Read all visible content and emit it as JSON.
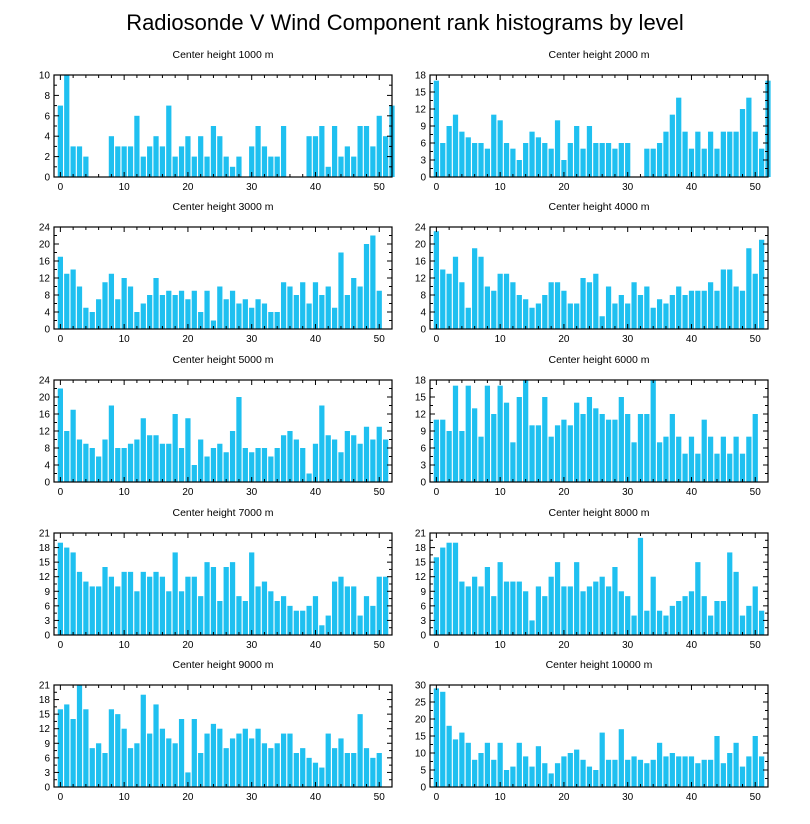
{
  "title": "Radiosonde V Wind Component rank histograms by level",
  "colors": {
    "bar": "#1fc0f0",
    "axis": "#000000"
  },
  "chart_data": [
    {
      "type": "bar",
      "title": "Center height 1000 m",
      "ylim": [
        0,
        10
      ],
      "yticks": [
        0,
        2,
        4,
        6,
        8,
        10
      ],
      "xlim": [
        -1,
        52
      ],
      "xticks": [
        0,
        10,
        20,
        30,
        40,
        50
      ],
      "values": [
        7,
        10,
        3,
        3,
        2,
        0,
        0,
        0,
        4,
        3,
        3,
        3,
        6,
        2,
        3,
        4,
        3,
        7,
        2,
        3,
        4,
        2,
        4,
        2,
        5,
        4,
        2,
        1,
        2,
        0,
        3,
        5,
        3,
        2,
        2,
        5,
        0,
        0,
        0,
        4,
        4,
        5,
        1,
        5,
        2,
        3,
        2,
        5,
        5,
        3,
        6,
        4,
        7
      ]
    },
    {
      "type": "bar",
      "title": "Center height 2000 m",
      "ylim": [
        0,
        18
      ],
      "yticks": [
        0,
        3,
        6,
        9,
        12,
        15,
        18
      ],
      "xlim": [
        -1,
        52
      ],
      "xticks": [
        0,
        10,
        20,
        30,
        40,
        50
      ],
      "values": [
        17,
        6,
        9,
        11,
        8,
        7,
        6,
        6,
        5,
        11,
        10,
        6,
        5,
        3,
        6,
        8,
        7,
        6,
        5,
        10,
        3,
        6,
        9,
        5,
        9,
        6,
        6,
        6,
        5,
        6,
        6,
        0,
        0,
        5,
        5,
        6,
        8,
        11,
        14,
        8,
        5,
        8,
        5,
        8,
        5,
        8,
        8,
        8,
        12,
        14,
        8,
        5,
        17
      ]
    },
    {
      "type": "bar",
      "title": "Center height 3000 m",
      "ylim": [
        0,
        24
      ],
      "yticks": [
        0,
        4,
        8,
        12,
        16,
        20,
        24
      ],
      "xlim": [
        -1,
        52
      ],
      "xticks": [
        0,
        10,
        20,
        30,
        40,
        50
      ],
      "values": [
        17,
        13,
        14,
        10,
        5,
        4,
        7,
        11,
        13,
        7,
        12,
        10,
        4,
        6,
        8,
        12,
        8,
        9,
        8,
        9,
        7,
        9,
        4,
        9,
        2,
        10,
        7,
        9,
        6,
        7,
        5,
        7,
        6,
        4,
        4,
        11,
        10,
        8,
        11,
        6,
        11,
        8,
        10,
        5,
        18,
        8,
        12,
        10,
        20,
        22,
        9
      ]
    },
    {
      "type": "bar",
      "title": "Center height 4000 m",
      "ylim": [
        0,
        24
      ],
      "yticks": [
        0,
        4,
        8,
        12,
        16,
        20,
        24
      ],
      "xlim": [
        -1,
        52
      ],
      "xticks": [
        0,
        10,
        20,
        30,
        40,
        50
      ],
      "values": [
        23,
        14,
        13,
        17,
        11,
        5,
        19,
        17,
        10,
        9,
        13,
        13,
        11,
        8,
        7,
        5,
        6,
        8,
        11,
        11,
        9,
        6,
        6,
        12,
        11,
        13,
        3,
        10,
        6,
        8,
        6,
        11,
        8,
        10,
        5,
        7,
        6,
        8,
        10,
        8,
        9,
        9,
        9,
        11,
        9,
        14,
        14,
        10,
        9,
        19,
        13,
        21
      ]
    },
    {
      "type": "bar",
      "title": "Center height 5000 m",
      "ylim": [
        0,
        24
      ],
      "yticks": [
        0,
        4,
        8,
        12,
        16,
        20,
        24
      ],
      "xlim": [
        -1,
        52
      ],
      "xticks": [
        0,
        10,
        20,
        30,
        40,
        50
      ],
      "values": [
        22,
        12,
        17,
        10,
        9,
        8,
        6,
        10,
        18,
        8,
        8,
        9,
        10,
        15,
        11,
        11,
        9,
        9,
        16,
        8,
        15,
        4,
        10,
        6,
        8,
        9,
        7,
        12,
        20,
        8,
        7,
        8,
        8,
        6,
        8,
        11,
        12,
        10,
        8,
        2,
        9,
        18,
        11,
        10,
        7,
        12,
        11,
        9,
        13,
        10,
        13,
        10
      ]
    },
    {
      "type": "bar",
      "title": "Center height 6000 m",
      "ylim": [
        0,
        18
      ],
      "yticks": [
        0,
        3,
        6,
        9,
        12,
        15,
        18
      ],
      "xlim": [
        -1,
        52
      ],
      "xticks": [
        0,
        10,
        20,
        30,
        40,
        50
      ],
      "values": [
        11,
        11,
        9,
        17,
        9,
        17,
        13,
        8,
        17,
        12,
        17,
        14,
        7,
        15,
        18,
        10,
        10,
        15,
        8,
        10,
        11,
        10,
        14,
        12,
        15,
        13,
        12,
        11,
        11,
        15,
        12,
        7,
        12,
        12,
        18,
        7,
        8,
        12,
        8,
        5,
        8,
        5,
        11,
        8,
        5,
        8,
        5,
        8,
        5,
        8,
        12
      ]
    },
    {
      "type": "bar",
      "title": "Center height 7000 m",
      "ylim": [
        0,
        21
      ],
      "yticks": [
        0,
        3,
        6,
        9,
        12,
        15,
        18,
        21
      ],
      "xlim": [
        -1,
        52
      ],
      "xticks": [
        0,
        10,
        20,
        30,
        40,
        50
      ],
      "values": [
        19,
        18,
        17,
        13,
        11,
        10,
        10,
        14,
        12,
        10,
        13,
        13,
        9,
        13,
        12,
        13,
        12,
        9,
        17,
        9,
        12,
        12,
        8,
        15,
        14,
        7,
        14,
        15,
        8,
        7,
        17,
        10,
        11,
        9,
        7,
        8,
        6,
        5,
        5,
        6,
        8,
        2,
        4,
        11,
        12,
        10,
        10,
        4,
        8,
        6,
        12,
        12
      ]
    },
    {
      "type": "bar",
      "title": "Center height 8000 m",
      "ylim": [
        0,
        21
      ],
      "yticks": [
        0,
        3,
        6,
        9,
        12,
        15,
        18,
        21
      ],
      "xlim": [
        -1,
        52
      ],
      "xticks": [
        0,
        10,
        20,
        30,
        40,
        50
      ],
      "values": [
        16,
        18,
        19,
        19,
        11,
        10,
        12,
        10,
        14,
        8,
        15,
        11,
        11,
        11,
        9,
        3,
        10,
        8,
        12,
        15,
        10,
        10,
        15,
        9,
        10,
        11,
        12,
        10,
        14,
        9,
        8,
        4,
        20,
        5,
        12,
        5,
        4,
        6,
        7,
        8,
        9,
        15,
        8,
        4,
        7,
        7,
        17,
        13,
        4,
        6,
        10,
        5
      ]
    },
    {
      "type": "bar",
      "title": "Center height 9000 m",
      "ylim": [
        0,
        21
      ],
      "yticks": [
        0,
        3,
        6,
        9,
        12,
        15,
        18,
        21
      ],
      "xlim": [
        -1,
        52
      ],
      "xticks": [
        0,
        10,
        20,
        30,
        40,
        50
      ],
      "values": [
        16,
        17,
        14,
        21,
        16,
        8,
        9,
        7,
        16,
        15,
        12,
        8,
        9,
        19,
        11,
        17,
        12,
        10,
        9,
        14,
        3,
        14,
        7,
        11,
        13,
        12,
        8,
        10,
        11,
        12,
        10,
        12,
        9,
        8,
        9,
        11,
        11,
        7,
        8,
        6,
        5,
        4,
        11,
        8,
        10,
        7,
        7,
        15,
        8,
        6,
        7
      ]
    },
    {
      "type": "bar",
      "title": "Center height 10000 m",
      "ylim": [
        0,
        30
      ],
      "yticks": [
        0,
        5,
        10,
        15,
        20,
        25,
        30
      ],
      "xlim": [
        -1,
        52
      ],
      "xticks": [
        0,
        10,
        20,
        30,
        40,
        50
      ],
      "values": [
        29,
        28,
        18,
        14,
        16,
        13,
        8,
        10,
        13,
        8,
        13,
        5,
        6,
        13,
        9,
        6,
        12,
        7,
        4,
        7,
        9,
        10,
        11,
        8,
        6,
        5,
        16,
        8,
        8,
        17,
        8,
        9,
        8,
        7,
        8,
        13,
        9,
        10,
        9,
        9,
        9,
        7,
        8,
        8,
        15,
        7,
        10,
        13,
        6,
        9,
        15,
        9
      ]
    }
  ]
}
